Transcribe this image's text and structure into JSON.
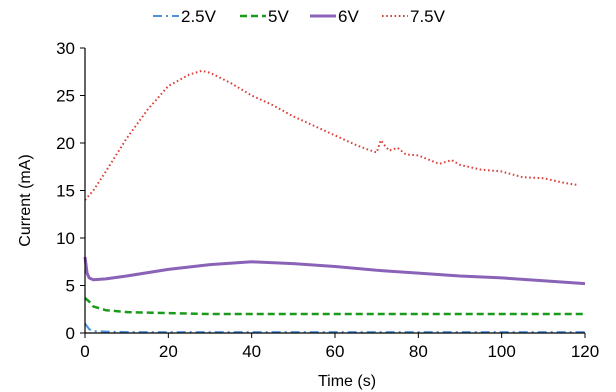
{
  "chart_data": {
    "type": "line",
    "title": "",
    "xlabel": "Time (s)",
    "ylabel": "Current (mA)",
    "xlim": [
      0,
      120
    ],
    "ylim": [
      0,
      30
    ],
    "x_ticks": [
      "0",
      "20",
      "40",
      "60",
      "80",
      "100",
      "120"
    ],
    "y_ticks": [
      "0",
      "5",
      "10",
      "15",
      "20",
      "25",
      "30"
    ],
    "grid": false,
    "legend_position": "top",
    "series": [
      {
        "name": "2.5V",
        "color": "#4a90e2",
        "dash": "dash-dot",
        "x": [
          0,
          1,
          2,
          5,
          10,
          20,
          40,
          60,
          80,
          100,
          120
        ],
        "y": [
          1.0,
          0.4,
          0.2,
          0.15,
          0.1,
          0.1,
          0.1,
          0.1,
          0.1,
          0.1,
          0.1
        ]
      },
      {
        "name": "5V",
        "color": "#1a9a1a",
        "dash": "dashed",
        "x": [
          0,
          1,
          2,
          5,
          10,
          20,
          30,
          40,
          60,
          80,
          100,
          120
        ],
        "y": [
          3.7,
          3.3,
          2.8,
          2.4,
          2.2,
          2.1,
          2.0,
          2.0,
          2.0,
          2.0,
          2.0,
          2.0
        ]
      },
      {
        "name": "6V",
        "color": "#8a63b8",
        "dash": "solid",
        "x": [
          0,
          0.5,
          1,
          2,
          5,
          10,
          20,
          30,
          40,
          50,
          60,
          70,
          80,
          90,
          100,
          110,
          120
        ],
        "y": [
          8.0,
          6.3,
          5.8,
          5.6,
          5.7,
          6.0,
          6.7,
          7.2,
          7.5,
          7.3,
          7.0,
          6.6,
          6.3,
          6.0,
          5.8,
          5.5,
          5.2
        ]
      },
      {
        "name": "7.5V",
        "color": "#d9403a",
        "dash": "dotted",
        "x": [
          0,
          2,
          5,
          10,
          15,
          20,
          25,
          28,
          30,
          35,
          40,
          45,
          50,
          55,
          60,
          65,
          68,
          70,
          71,
          72,
          73,
          75,
          77,
          80,
          85,
          88,
          90,
          95,
          100,
          105,
          110,
          115,
          118
        ],
        "y": [
          14.0,
          15.0,
          17.0,
          20.5,
          23.5,
          26.0,
          27.2,
          27.6,
          27.4,
          26.3,
          25.0,
          24.0,
          22.8,
          21.8,
          20.8,
          19.8,
          19.3,
          19.0,
          20.3,
          19.7,
          19.2,
          19.5,
          18.8,
          18.7,
          17.8,
          18.2,
          17.7,
          17.2,
          17.0,
          16.4,
          16.3,
          15.8,
          15.6
        ]
      }
    ]
  }
}
